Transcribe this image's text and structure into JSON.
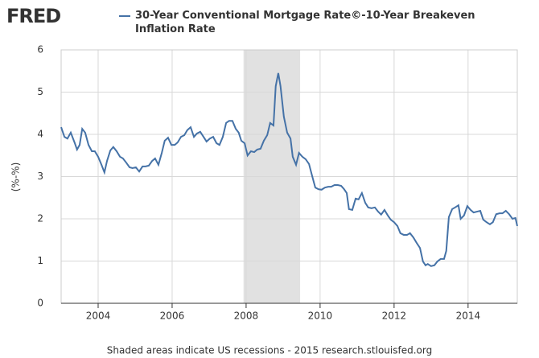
{
  "chart_data": {
    "type": "line",
    "logo": "FRED",
    "ylabel": "(%-%)",
    "footer": "Shaded areas indicate US recessions - 2015 research.stlouisfed.org",
    "xlim": [
      2003,
      2015.33
    ],
    "ylim": [
      0,
      6
    ],
    "xticks": [
      2004,
      2006,
      2008,
      2010,
      2012,
      2014
    ],
    "yticks": [
      0,
      1,
      2,
      3,
      4,
      5,
      6
    ],
    "grid": true,
    "recessions": [
      [
        2007.93,
        2009.46
      ]
    ],
    "series": [
      {
        "name": "30-Year Conventional Mortgage Rate©-10-Year Breakeven Inflation Rate",
        "color": "#4572a7",
        "x": [
          2003.0,
          2003.09,
          2003.17,
          2003.26,
          2003.37,
          2003.43,
          2003.5,
          2003.57,
          2003.65,
          2003.74,
          2003.83,
          2003.91,
          2004.0,
          2004.09,
          2004.17,
          2004.24,
          2004.33,
          2004.41,
          2004.5,
          2004.59,
          2004.67,
          2004.76,
          2004.85,
          2004.93,
          2005.02,
          2005.11,
          2005.2,
          2005.28,
          2005.37,
          2005.46,
          2005.54,
          2005.63,
          2005.72,
          2005.8,
          2005.89,
          2005.98,
          2006.07,
          2006.15,
          2006.24,
          2006.33,
          2006.41,
          2006.5,
          2006.59,
          2006.67,
          2006.76,
          2006.85,
          2006.93,
          2007.02,
          2007.11,
          2007.2,
          2007.28,
          2007.37,
          2007.46,
          2007.54,
          2007.63,
          2007.72,
          2007.8,
          2007.87,
          2007.96,
          2008.04,
          2008.13,
          2008.22,
          2008.3,
          2008.39,
          2008.48,
          2008.57,
          2008.65,
          2008.74,
          2008.8,
          2008.87,
          2008.93,
          2009.02,
          2009.11,
          2009.2,
          2009.26,
          2009.35,
          2009.43,
          2009.52,
          2009.61,
          2009.7,
          2009.78,
          2009.87,
          2009.96,
          2010.04,
          2010.13,
          2010.22,
          2010.3,
          2010.39,
          2010.48,
          2010.57,
          2010.65,
          2010.72,
          2010.78,
          2010.87,
          2010.96,
          2011.04,
          2011.13,
          2011.22,
          2011.3,
          2011.39,
          2011.48,
          2011.57,
          2011.65,
          2011.74,
          2011.83,
          2011.91,
          2012.0,
          2012.09,
          2012.17,
          2012.26,
          2012.35,
          2012.43,
          2012.52,
          2012.61,
          2012.7,
          2012.78,
          2012.85,
          2012.91,
          2013.0,
          2013.09,
          2013.17,
          2013.26,
          2013.35,
          2013.41,
          2013.48,
          2013.57,
          2013.65,
          2013.74,
          2013.8,
          2013.89,
          2013.98,
          2014.07,
          2014.15,
          2014.24,
          2014.33,
          2014.41,
          2014.5,
          2014.59,
          2014.67,
          2014.76,
          2014.85,
          2014.93,
          2015.02,
          2015.11,
          2015.2,
          2015.28,
          2015.33
        ],
        "values": [
          4.17,
          3.94,
          3.9,
          4.04,
          3.79,
          3.64,
          3.75,
          4.13,
          4.04,
          3.75,
          3.6,
          3.6,
          3.47,
          3.28,
          3.1,
          3.37,
          3.62,
          3.7,
          3.6,
          3.47,
          3.43,
          3.33,
          3.22,
          3.2,
          3.22,
          3.12,
          3.24,
          3.24,
          3.26,
          3.37,
          3.43,
          3.28,
          3.56,
          3.85,
          3.92,
          3.75,
          3.75,
          3.81,
          3.94,
          3.98,
          4.1,
          4.17,
          3.94,
          4.02,
          4.06,
          3.94,
          3.83,
          3.9,
          3.94,
          3.79,
          3.75,
          3.94,
          4.27,
          4.32,
          4.32,
          4.13,
          4.04,
          3.85,
          3.79,
          3.5,
          3.6,
          3.58,
          3.64,
          3.66,
          3.85,
          3.98,
          4.27,
          4.21,
          5.14,
          5.45,
          5.14,
          4.42,
          4.04,
          3.9,
          3.47,
          3.28,
          3.56,
          3.47,
          3.41,
          3.3,
          3.03,
          2.74,
          2.7,
          2.69,
          2.74,
          2.76,
          2.76,
          2.8,
          2.8,
          2.78,
          2.7,
          2.61,
          2.23,
          2.21,
          2.48,
          2.46,
          2.61,
          2.38,
          2.27,
          2.25,
          2.27,
          2.17,
          2.1,
          2.21,
          2.08,
          1.98,
          1.92,
          1.83,
          1.66,
          1.62,
          1.62,
          1.66,
          1.56,
          1.43,
          1.31,
          0.99,
          0.9,
          0.93,
          0.88,
          0.9,
          0.99,
          1.05,
          1.05,
          1.24,
          2.04,
          2.23,
          2.27,
          2.32,
          2.0,
          2.08,
          2.3,
          2.21,
          2.15,
          2.17,
          2.19,
          1.98,
          1.92,
          1.87,
          1.92,
          2.11,
          2.13,
          2.13,
          2.19,
          2.11,
          2.0,
          2.02,
          1.83
        ]
      }
    ]
  }
}
